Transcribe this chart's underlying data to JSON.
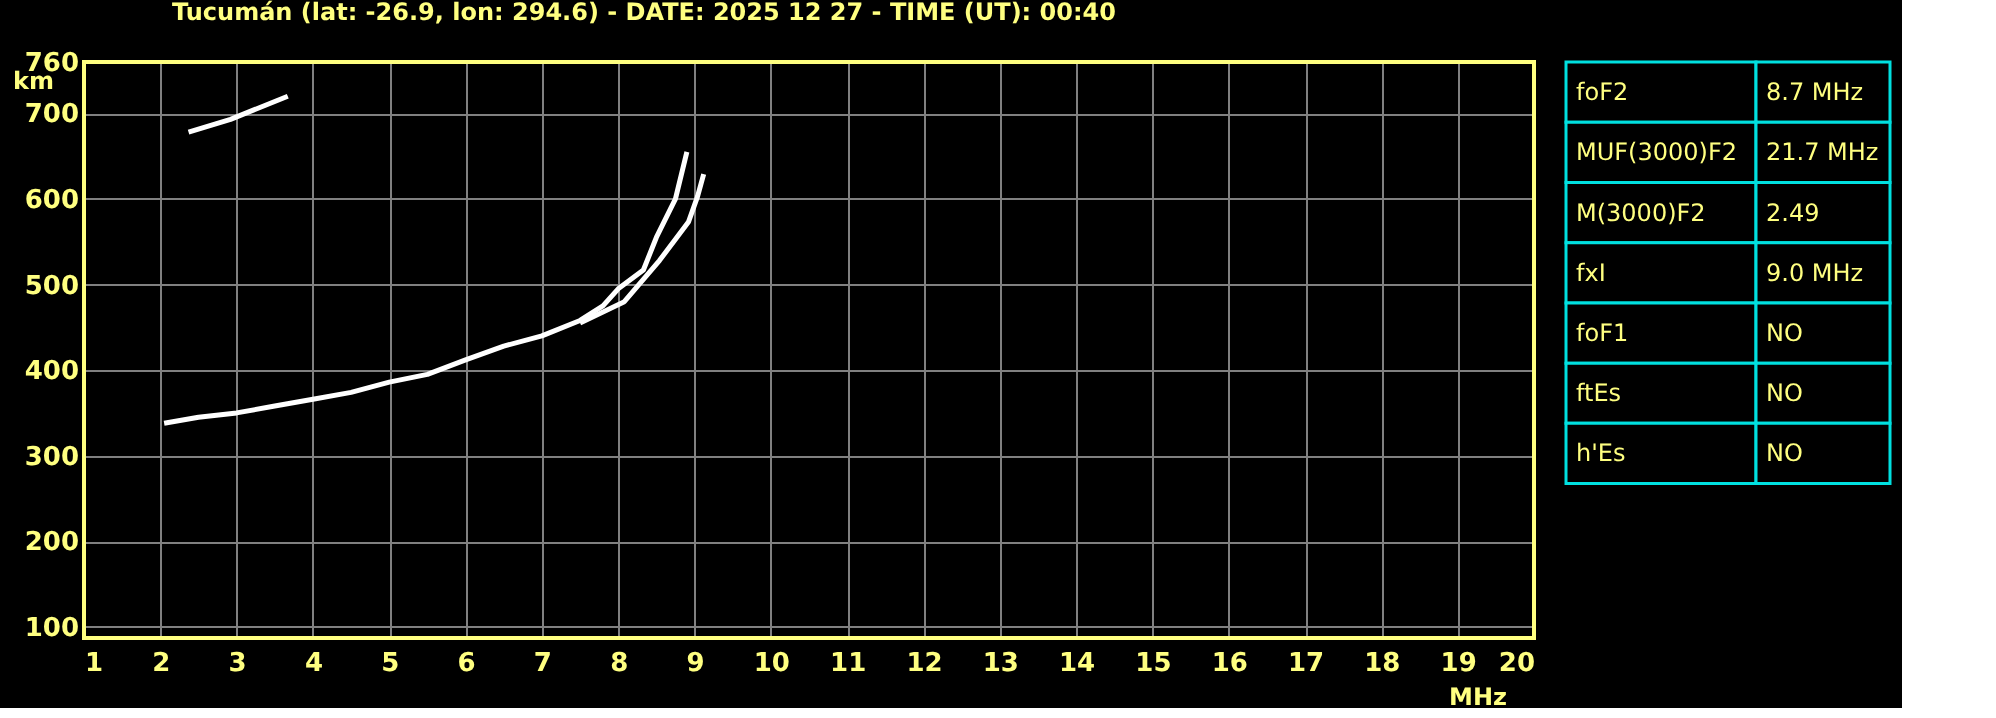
{
  "chart_data": [
    {
      "type": "line",
      "title": "Tucumán (lat: -26.9, lon: 294.6) - DATE: 2025 12 27 - TIME (UT): 00:40",
      "xlabel": "MHz",
      "ylabel": "km",
      "xlim": [
        1,
        20
      ],
      "xticks": [
        1,
        2,
        3,
        4,
        5,
        6,
        7,
        8,
        9,
        10,
        11,
        12,
        13,
        14,
        15,
        16,
        17,
        18,
        19,
        20
      ],
      "ylim": [
        87,
        760
      ],
      "yticks": [
        100,
        200,
        300,
        400,
        500,
        600,
        700,
        760
      ],
      "grid": true,
      "marker": "none",
      "line_style": "solid",
      "series": [
        {
          "color": "#ffffff",
          "x": [
            2.05,
            2.5,
            3,
            3.5,
            4,
            4.5,
            5,
            5.5,
            6,
            6.5,
            7,
            7.5,
            7.8,
            8,
            8.33,
            8.5,
            8.75,
            8.9
          ],
          "values": [
            338,
            345,
            350,
            358,
            366,
            374,
            386,
            395,
            412,
            428,
            440,
            458,
            475,
            495,
            517,
            555,
            600,
            655
          ]
        },
        {
          "color": "#ffffff",
          "x": [
            7.5,
            8.08,
            8.54,
            8.92,
            9.04,
            9.12
          ],
          "values": [
            455,
            480,
            528,
            573,
            603,
            629
          ]
        },
        {
          "color": "#ffffff",
          "x": [
            2.37,
            2.92,
            3.67
          ],
          "values": [
            678,
            693,
            720
          ]
        }
      ]
    },
    {
      "type": "other",
      "annotations": [
        "foF2",
        "8.7 MHz",
        "MUF(3000)F2",
        "21.7 MHz",
        "M(3000)F2",
        "2.49",
        "fxI",
        "9.0 MHz",
        "foF1",
        "NO",
        "ftEs",
        "NO",
        "h'Es",
        "NO"
      ]
    }
  ]
}
